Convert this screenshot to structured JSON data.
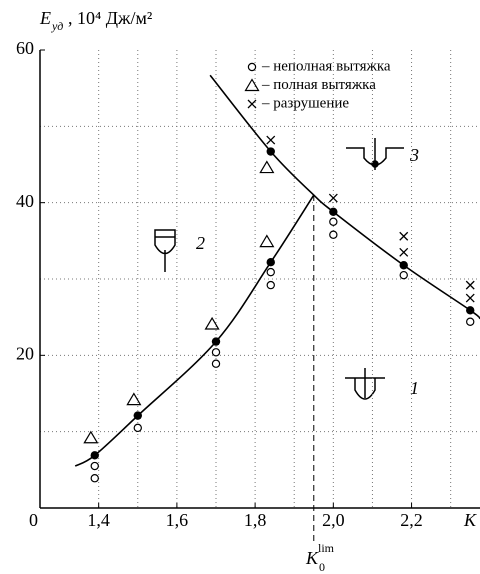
{
  "chart_data": {
    "type": "scatter",
    "y_label": {
      "symbol": "E",
      "subscript": "уд",
      "units": ", 10⁴ Дж/м²"
    },
    "x_label": "K",
    "xlim": [
      1.25,
      2.375
    ],
    "ylim": [
      0,
      60
    ],
    "xticks": [
      {
        "value": 1.4,
        "label": "1,4"
      },
      {
        "value": 1.6,
        "label": "1,6"
      },
      {
        "value": 1.8,
        "label": "1,8"
      },
      {
        "value": 2.0,
        "label": "2,0"
      },
      {
        "value": 2.2,
        "label": "2,2"
      }
    ],
    "yticks": [
      0,
      20,
      40,
      60
    ],
    "grid": true,
    "xgrid": [
      1.4,
      1.5,
      1.6,
      1.7,
      1.8,
      1.9,
      2.0,
      2.1,
      2.2,
      2.3
    ],
    "ygrid": [
      10,
      20,
      30,
      40,
      50
    ],
    "series": [
      {
        "name": "– неполная вытяжка",
        "marker": "circle",
        "color": "#000000",
        "x": [
          1.39,
          1.39,
          1.5,
          1.7,
          1.7,
          1.84,
          1.84,
          2.0,
          2.0,
          2.18,
          2.35
        ],
        "y": [
          5.5,
          3.9,
          10.5,
          20.4,
          18.9,
          30.9,
          29.2,
          37.5,
          35.8,
          30.5,
          24.4
        ]
      },
      {
        "name": "– полная вытяжка",
        "marker": "triangle",
        "color": "#000000",
        "x": [
          1.38,
          1.49,
          1.69,
          1.83,
          1.83
        ],
        "y": [
          9.2,
          14.2,
          24.1,
          34.9,
          44.6
        ]
      },
      {
        "name": "– разрушение",
        "marker": "cross",
        "color": "#000000",
        "x": [
          1.84,
          2.0,
          2.18,
          2.18,
          2.35,
          2.35
        ],
        "y": [
          48.2,
          40.6,
          35.6,
          33.5,
          29.2,
          27.5
        ]
      },
      {
        "marker": "dot",
        "color": "#000000",
        "x": [
          1.39,
          1.5,
          1.7,
          1.84,
          1.84,
          2.0,
          2.18,
          2.35
        ],
        "y": [
          6.9,
          12.1,
          21.8,
          32.2,
          46.7,
          38.8,
          31.8,
          25.9
        ]
      }
    ],
    "curves": [
      {
        "color": "#000000",
        "x": [
          1.34,
          1.39,
          1.5,
          1.7,
          1.84,
          1.95
        ],
        "y": [
          5.5,
          6.9,
          12.1,
          21.8,
          32.2,
          41
        ]
      },
      {
        "color": "#000000",
        "x": [
          1.685,
          1.84,
          1.95,
          2.0,
          2.18,
          2.35,
          2.375
        ],
        "y": [
          56.7,
          46.7,
          41,
          38.8,
          31.8,
          25.9,
          24.8
        ]
      }
    ],
    "k_lim": {
      "x": 1.95,
      "y": 41,
      "symbol": "K",
      "subscript": "0",
      "superscript": "lim"
    },
    "zones": [
      "1",
      "2",
      "3"
    ]
  }
}
